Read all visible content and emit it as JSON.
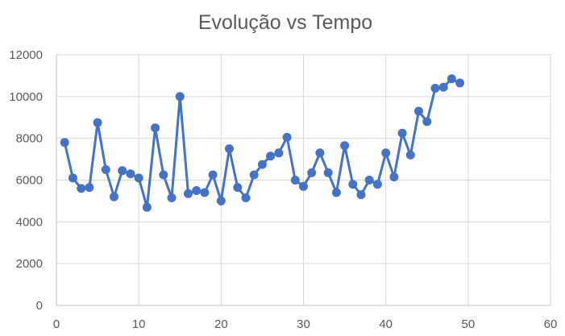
{
  "chart_data": {
    "type": "scatter",
    "title": "Evolução vs Tempo",
    "xlabel": "",
    "ylabel": "",
    "xlim": [
      0,
      60
    ],
    "ylim": [
      0,
      12000
    ],
    "x_ticks": [
      "0",
      "10",
      "20",
      "30",
      "40",
      "50",
      "60"
    ],
    "y_ticks": [
      "0",
      "2000",
      "4000",
      "6000",
      "8000",
      "10000",
      "12000"
    ],
    "grid": true,
    "legend": "none",
    "series": [
      {
        "color": "#4472c4",
        "x": [
          1,
          2,
          3,
          4,
          5,
          6,
          7,
          8,
          9,
          10,
          11,
          12,
          13,
          14,
          15,
          16,
          17,
          18,
          19,
          20,
          21,
          22,
          23,
          24,
          25,
          26,
          27,
          28,
          29,
          30,
          31,
          32,
          33,
          34,
          35,
          36,
          37,
          38,
          39,
          40,
          41,
          42,
          43,
          44,
          45,
          46,
          47,
          48,
          49
        ],
        "y": [
          7800,
          6100,
          5600,
          5650,
          8750,
          6500,
          5200,
          6450,
          6300,
          6100,
          4700,
          8500,
          6250,
          5150,
          10000,
          5350,
          5500,
          5400,
          6250,
          5000,
          7500,
          5650,
          5150,
          6250,
          6750,
          7150,
          7300,
          8050,
          6000,
          5700,
          6350,
          7300,
          6350,
          5400,
          7650,
          5800,
          5300,
          6000,
          5800,
          7300,
          6150,
          8250,
          7200,
          9300,
          8800,
          10400,
          10450,
          10850,
          10650
        ]
      }
    ]
  }
}
